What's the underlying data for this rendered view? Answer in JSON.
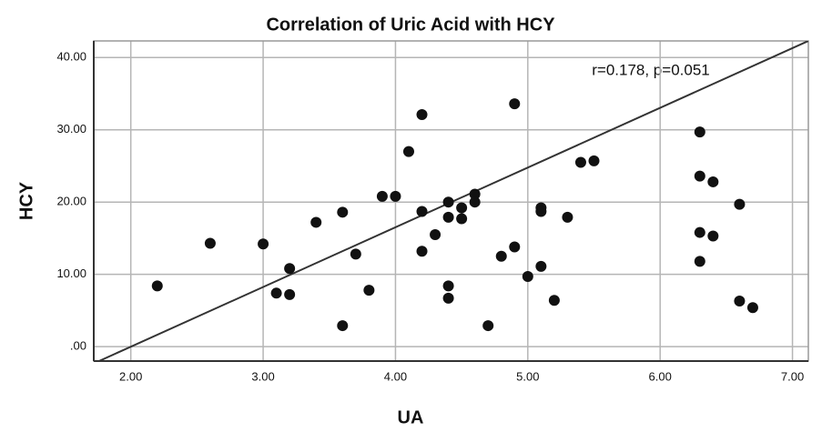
{
  "chart_data": {
    "type": "scatter",
    "title": "Correlation of Uric Acid with HCY",
    "xlabel": "UA",
    "ylabel": "HCY",
    "annotation": "r=0.178, p=0.051",
    "x": [
      2.2,
      2.6,
      3.0,
      3.1,
      3.2,
      3.2,
      3.4,
      3.6,
      3.6,
      3.7,
      3.8,
      3.9,
      4.0,
      4.1,
      4.2,
      4.2,
      4.2,
      4.3,
      4.4,
      4.4,
      4.4,
      4.4,
      4.5,
      4.5,
      4.6,
      4.6,
      4.7,
      4.8,
      4.9,
      4.9,
      5.0,
      5.1,
      5.1,
      5.1,
      5.2,
      5.3,
      5.4,
      5.5,
      6.3,
      6.3,
      6.3,
      6.3,
      6.4,
      6.4,
      6.6,
      6.6,
      6.7
    ],
    "values": [
      8.4,
      14.3,
      14.2,
      7.4,
      10.8,
      7.2,
      17.2,
      18.6,
      2.9,
      12.8,
      7.8,
      20.8,
      20.8,
      27.0,
      32.1,
      18.7,
      13.2,
      15.5,
      20.0,
      17.9,
      8.4,
      6.7,
      19.2,
      17.7,
      21.1,
      20.0,
      2.9,
      12.5,
      33.6,
      13.8,
      9.7,
      19.2,
      18.7,
      11.1,
      6.4,
      17.9,
      25.5,
      25.7,
      29.7,
      23.6,
      15.8,
      11.8,
      22.8,
      15.3,
      19.7,
      6.3,
      5.4
    ],
    "color": "#111111",
    "fit_line": {
      "x": [
        1.76,
        7.12
      ],
      "y": [
        -2,
        42.3
      ],
      "color": "#333333"
    },
    "xlim": [
      1.72,
      7.12
    ],
    "ylim": [
      -2,
      42.3
    ],
    "xticks": [
      {
        "value": 2,
        "label": "2.00"
      },
      {
        "value": 3,
        "label": "3.00"
      },
      {
        "value": 4,
        "label": "4.00"
      },
      {
        "value": 5,
        "label": "5.00"
      },
      {
        "value": 6,
        "label": "6.00"
      },
      {
        "value": 7,
        "label": "7.00"
      }
    ],
    "yticks": [
      {
        "value": 0,
        "label": ".00"
      },
      {
        "value": 10,
        "label": "10.00"
      },
      {
        "value": 20,
        "label": "20.00"
      },
      {
        "value": 30,
        "label": "30.00"
      },
      {
        "value": 40,
        "label": "40.00"
      }
    ],
    "grid": true
  }
}
